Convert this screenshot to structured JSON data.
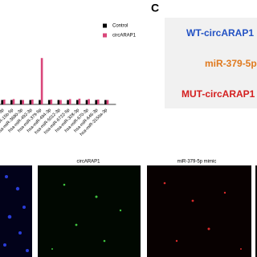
{
  "chart_data": {
    "type": "bar",
    "categories": [
      "7-3p",
      "hsa-miR-15b-5p",
      "hsa-miR-3680-3p",
      "hsa-miR-492-3p",
      "hsa-miR-379-5p",
      "hsa-miR-494-3p",
      "hsa-miR-5012-3p",
      "hsa-miR-6722-5p",
      "hsa-miR-328-3p",
      "hsa-miR-670-3p",
      "hsa-miR-646-3p",
      "hsa-miR-3150a-3p"
    ],
    "series": [
      {
        "name": "Control",
        "color": "#000000",
        "values": [
          1,
          1,
          1,
          1,
          1,
          1,
          1,
          1,
          1,
          1,
          1,
          1
        ]
      },
      {
        "name": "circARAP1",
        "color": "#d9467a",
        "values": [
          1.1,
          1.2,
          1,
          1.1,
          10.5,
          1.1,
          1,
          1.2,
          1.3,
          1.2,
          1.1,
          1
        ]
      }
    ],
    "ylim": [
      0,
      12
    ]
  },
  "panel_c": {
    "letter": "C",
    "wt": "WT-circARAP1",
    "mirna": "miR-379-5p",
    "mut": "MUT-circARAP1"
  },
  "images": {
    "label_1": "circARAP1",
    "label_2": "miR-379-5p mimic"
  }
}
